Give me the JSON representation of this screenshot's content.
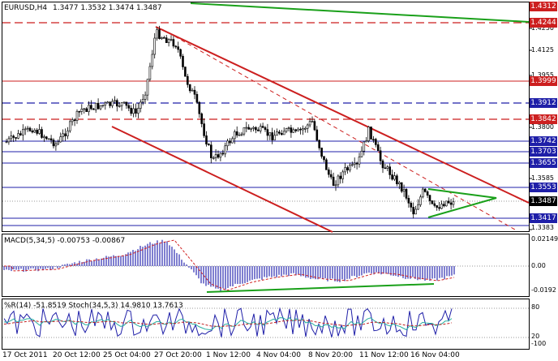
{
  "header": {
    "symbol": "EURUSD,H4",
    "ohlc": "1.3477 1.3532 1.3474 1.3487"
  },
  "macd": {
    "title": "MACD(5,34,5) -0.00753 -0.00867",
    "scale": [
      "0.02149",
      "0.00",
      "-0.0192"
    ]
  },
  "stoch": {
    "title": "%R(14) -51.8519 Stoch(34,5,3) 14.9810 13.7613",
    "scale": [
      "80",
      "20",
      "-100"
    ]
  },
  "price_axis": {
    "plain": [
      "1.4250",
      "1.4125",
      "1.3955",
      "1.3800",
      "1.3585",
      "1.3383"
    ],
    "boxes": [
      {
        "v": "1.4312",
        "color": "#cc1f1f"
      },
      {
        "v": "1.4244",
        "color": "#cc1f1f"
      },
      {
        "v": "1.3999",
        "color": "#cc1f1f"
      },
      {
        "v": "1.3912",
        "color": "#1f1fa8"
      },
      {
        "v": "1.3842",
        "color": "#cc1f1f"
      },
      {
        "v": "1.3742",
        "color": "#1f1fa8"
      },
      {
        "v": "1.3703",
        "color": "#1f1fa8"
      },
      {
        "v": "1.3655",
        "color": "#1f1fa8"
      },
      {
        "v": "1.3553",
        "color": "#1f1fa8"
      },
      {
        "v": "1.3487",
        "color": "#000000"
      },
      {
        "v": "1.3417",
        "color": "#1f1fa8"
      }
    ]
  },
  "time_axis": [
    "17 Oct 2011",
    "20 Oct 12:00",
    "25 Oct 04:00",
    "27 Oct 20:00",
    "1 Nov 12:00",
    "4 Nov 04:00",
    "8 Nov 20:00",
    "11 Nov 12:00",
    "16 Nov 04:00"
  ],
  "colors": {
    "resistance": "#cc1f1f",
    "support": "#1f1fa8",
    "channel": "#cc1f1f",
    "triangle": "#1aa01a",
    "candles": "#000000",
    "macd_hist": "#2a2ab0",
    "signal": "#d02020"
  }
}
